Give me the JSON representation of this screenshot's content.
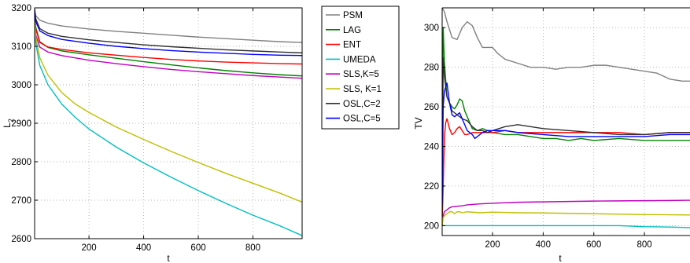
{
  "chart_data": [
    {
      "type": "line",
      "title": "",
      "xlabel": "t",
      "ylabel": "L",
      "ylabel_subscript": "2",
      "xlim": [
        1,
        980
      ],
      "ylim": [
        2600,
        3200
      ],
      "xticks": [
        200,
        400,
        600,
        800
      ],
      "yticks": [
        2600,
        2700,
        2800,
        2900,
        3000,
        3100,
        3200
      ],
      "grid": true,
      "legend": "outside-right",
      "series": [
        {
          "name": "PSM",
          "color": "#808080",
          "x": [
            1,
            5,
            20,
            50,
            100,
            200,
            300,
            400,
            500,
            600,
            700,
            800,
            900,
            980
          ],
          "y": [
            3195,
            3180,
            3168,
            3160,
            3153,
            3145,
            3139,
            3134,
            3129,
            3124,
            3120,
            3116,
            3112,
            3110
          ]
        },
        {
          "name": "LAG",
          "color": "#008000",
          "x": [
            1,
            5,
            20,
            50,
            100,
            200,
            300,
            400,
            500,
            600,
            700,
            800,
            900,
            980
          ],
          "y": [
            3190,
            3150,
            3112,
            3097,
            3088,
            3078,
            3069,
            3060,
            3052,
            3044,
            3037,
            3031,
            3026,
            3023
          ]
        },
        {
          "name": "ENT",
          "color": "#ff0000",
          "x": [
            1,
            5,
            20,
            50,
            100,
            200,
            300,
            400,
            500,
            600,
            700,
            800,
            900,
            980
          ],
          "y": [
            3185,
            3145,
            3110,
            3098,
            3092,
            3083,
            3077,
            3071,
            3066,
            3062,
            3059,
            3057,
            3055,
            3054
          ]
        },
        {
          "name": "UMEDA",
          "color": "#00bfbf",
          "x": [
            1,
            5,
            20,
            50,
            100,
            150,
            200,
            300,
            400,
            500,
            600,
            700,
            800,
            900,
            980
          ],
          "y": [
            3170,
            3110,
            3050,
            3000,
            2950,
            2915,
            2885,
            2838,
            2797,
            2760,
            2725,
            2692,
            2661,
            2633,
            2608
          ]
        },
        {
          "name": "SLS,K=5",
          "color": "#bf00bf",
          "x": [
            1,
            5,
            20,
            50,
            100,
            200,
            300,
            400,
            500,
            600,
            700,
            800,
            900,
            980
          ],
          "y": [
            3180,
            3130,
            3098,
            3085,
            3076,
            3064,
            3055,
            3047,
            3040,
            3034,
            3029,
            3024,
            3020,
            3017
          ]
        },
        {
          "name": "SLS, K=1",
          "color": "#bfbf00",
          "x": [
            1,
            5,
            20,
            50,
            100,
            150,
            200,
            300,
            400,
            500,
            600,
            700,
            800,
            900,
            980
          ],
          "y": [
            3175,
            3125,
            3070,
            3025,
            2980,
            2950,
            2928,
            2890,
            2858,
            2827,
            2798,
            2770,
            2744,
            2718,
            2695
          ]
        },
        {
          "name": "OSL,C=2",
          "color": "#303030",
          "x": [
            1,
            5,
            20,
            50,
            100,
            200,
            300,
            400,
            500,
            600,
            700,
            800,
            900,
            980
          ],
          "y": [
            3198,
            3172,
            3146,
            3134,
            3126,
            3117,
            3110,
            3104,
            3099,
            3095,
            3091,
            3088,
            3085,
            3083
          ]
        },
        {
          "name": "OSL,C=5",
          "color": "#0000ff",
          "x": [
            1,
            5,
            20,
            50,
            100,
            200,
            300,
            400,
            500,
            600,
            700,
            800,
            900,
            980
          ],
          "y": [
            3195,
            3165,
            3140,
            3128,
            3118,
            3108,
            3100,
            3094,
            3089,
            3085,
            3082,
            3079,
            3077,
            3076
          ]
        }
      ]
    },
    {
      "type": "line",
      "title": "",
      "xlabel": "t",
      "ylabel": "TV",
      "xlim": [
        1,
        980
      ],
      "ylim": [
        195,
        310
      ],
      "xticks": [
        200,
        400,
        600,
        800
      ],
      "yticks": [
        200,
        220,
        240,
        260,
        280,
        300
      ],
      "grid": true,
      "legend": "none",
      "series": [
        {
          "name": "PSM",
          "color": "#808080",
          "x": [
            1,
            10,
            20,
            40,
            60,
            80,
            100,
            120,
            140,
            160,
            180,
            200,
            220,
            250,
            300,
            350,
            400,
            450,
            500,
            550,
            600,
            650,
            700,
            750,
            800,
            850,
            900,
            950,
            980
          ],
          "y": [
            310,
            308,
            303,
            295,
            294,
            300,
            303,
            301,
            295,
            290,
            290,
            290,
            287,
            284,
            282,
            280,
            280,
            279,
            280,
            280,
            281,
            281,
            280,
            279,
            278,
            277,
            274,
            273,
            273
          ]
        },
        {
          "name": "LAG",
          "color": "#008000",
          "x": [
            1,
            5,
            10,
            20,
            30,
            40,
            50,
            60,
            70,
            80,
            90,
            100,
            110,
            120,
            140,
            160,
            200,
            250,
            300,
            350,
            400,
            450,
            500,
            550,
            600,
            700,
            800,
            900,
            980
          ],
          "y": [
            240,
            300,
            282,
            265,
            262,
            260,
            259,
            261,
            264,
            263,
            258,
            255,
            252,
            249,
            248,
            249,
            247,
            246,
            246,
            245,
            244,
            244,
            243,
            244,
            243,
            244,
            243,
            243,
            243
          ]
        },
        {
          "name": "ENT",
          "color": "#ff0000",
          "x": [
            1,
            5,
            10,
            15,
            20,
            30,
            40,
            50,
            60,
            70,
            80,
            90,
            100,
            120,
            140,
            160,
            200,
            250,
            300,
            400,
            500,
            600,
            700,
            800,
            900,
            980
          ],
          "y": [
            200,
            220,
            245,
            252,
            254,
            249,
            246,
            247,
            249,
            250,
            248,
            246,
            246,
            247,
            247,
            247,
            247,
            248,
            247,
            247,
            247,
            247,
            247,
            246,
            247,
            247
          ]
        },
        {
          "name": "UMEDA",
          "color": "#00bfbf",
          "x": [
            1,
            10,
            50,
            100,
            200,
            300,
            400,
            500,
            600,
            700,
            800,
            900,
            980
          ],
          "y": [
            200,
            200,
            200,
            200,
            200,
            200,
            200,
            200,
            200,
            200,
            199.5,
            199.3,
            199
          ]
        },
        {
          "name": "SLS,K=5",
          "color": "#bf00bf",
          "x": [
            1,
            5,
            10,
            20,
            30,
            40,
            60,
            80,
            100,
            150,
            200,
            300,
            400,
            500,
            600,
            700,
            800,
            900,
            980
          ],
          "y": [
            200,
            205,
            207,
            208,
            209,
            209.5,
            209.8,
            210,
            210.5,
            211,
            211.3,
            211.8,
            212,
            212.2,
            212.4,
            212.5,
            212.6,
            212.7,
            212.8
          ]
        },
        {
          "name": "SLS, K=1",
          "color": "#bfbf00",
          "x": [
            1,
            5,
            10,
            20,
            30,
            40,
            50,
            60,
            70,
            80,
            100,
            150,
            200,
            300,
            400,
            500,
            600,
            700,
            800,
            900,
            980
          ],
          "y": [
            200,
            204,
            205,
            206,
            207,
            207,
            206,
            207,
            207,
            206.5,
            207,
            206.5,
            206.8,
            206.5,
            206.4,
            206.2,
            206,
            205.8,
            205.6,
            205.5,
            205.4
          ]
        },
        {
          "name": "OSL,C=2",
          "color": "#303030",
          "x": [
            1,
            5,
            10,
            20,
            30,
            40,
            60,
            80,
            100,
            120,
            140,
            160,
            180,
            200,
            250,
            300,
            350,
            400,
            500,
            600,
            700,
            800,
            900,
            980
          ],
          "y": [
            205,
            285,
            275,
            265,
            262,
            258,
            256,
            254,
            253,
            250,
            248,
            248,
            247,
            248,
            250,
            251,
            250,
            249,
            248,
            247,
            246,
            246,
            247,
            247
          ]
        },
        {
          "name": "OSL,C=5",
          "color": "#0000ff",
          "x": [
            1,
            5,
            10,
            20,
            30,
            40,
            50,
            60,
            70,
            80,
            90,
            100,
            110,
            120,
            130,
            140,
            160,
            180,
            200,
            250,
            300,
            400,
            500,
            600,
            700,
            800,
            900,
            980
          ],
          "y": [
            210,
            260,
            268,
            272,
            262,
            256,
            255,
            256,
            257,
            254,
            251,
            248,
            247,
            246,
            244,
            245,
            247,
            248,
            248,
            248,
            247,
            246,
            245,
            245,
            245,
            245,
            246,
            246
          ]
        }
      ]
    }
  ]
}
